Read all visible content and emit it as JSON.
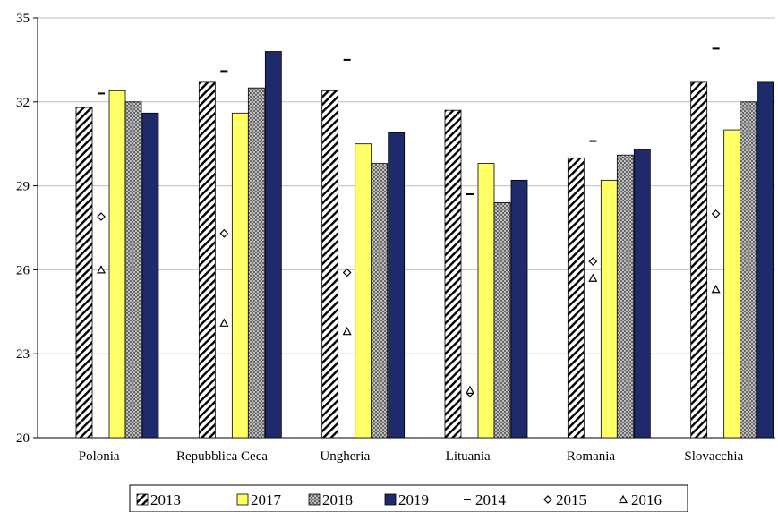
{
  "chart_data": {
    "type": "bar",
    "title": "",
    "xlabel": "",
    "ylabel": "",
    "ylim": [
      20,
      35
    ],
    "yticks": [
      20,
      23,
      26,
      29,
      32,
      35
    ],
    "grid": "horizontal",
    "legend_position": "bottom",
    "categories": [
      "Polonia",
      "Repubblica Ceca",
      "Ungheria",
      "Lituania",
      "Romania",
      "Slovacchia"
    ],
    "bar_series": [
      {
        "name": "2013",
        "pattern": "diagonal-hatch",
        "color": "#ffffff",
        "values": [
          31.8,
          32.7,
          32.4,
          31.7,
          30.0,
          32.7
        ]
      },
      {
        "name": "2017",
        "pattern": "solid",
        "color": "#ffff66",
        "values": [
          32.4,
          31.6,
          30.5,
          29.8,
          29.2,
          31.0
        ]
      },
      {
        "name": "2018",
        "pattern": "crosshatch",
        "color": "#bfbfbf",
        "values": [
          32.0,
          32.5,
          29.8,
          28.4,
          30.1,
          32.0
        ]
      },
      {
        "name": "2019",
        "pattern": "solid",
        "color": "#1f2a6b",
        "values": [
          31.6,
          33.8,
          30.9,
          29.2,
          30.3,
          32.7
        ]
      }
    ],
    "marker_series": [
      {
        "name": "2014",
        "marker": "dash",
        "values": [
          32.3,
          33.1,
          33.5,
          28.7,
          30.6,
          33.9
        ]
      },
      {
        "name": "2015",
        "marker": "diamond",
        "values": [
          27.9,
          27.3,
          25.9,
          21.6,
          26.3,
          28.0
        ]
      },
      {
        "name": "2016",
        "marker": "triangle",
        "values": [
          26.0,
          24.1,
          23.8,
          21.7,
          25.7,
          25.3
        ]
      }
    ],
    "legend_order": [
      "2013",
      "2017",
      "2018",
      "2019",
      "2014",
      "2015",
      "2016"
    ]
  }
}
